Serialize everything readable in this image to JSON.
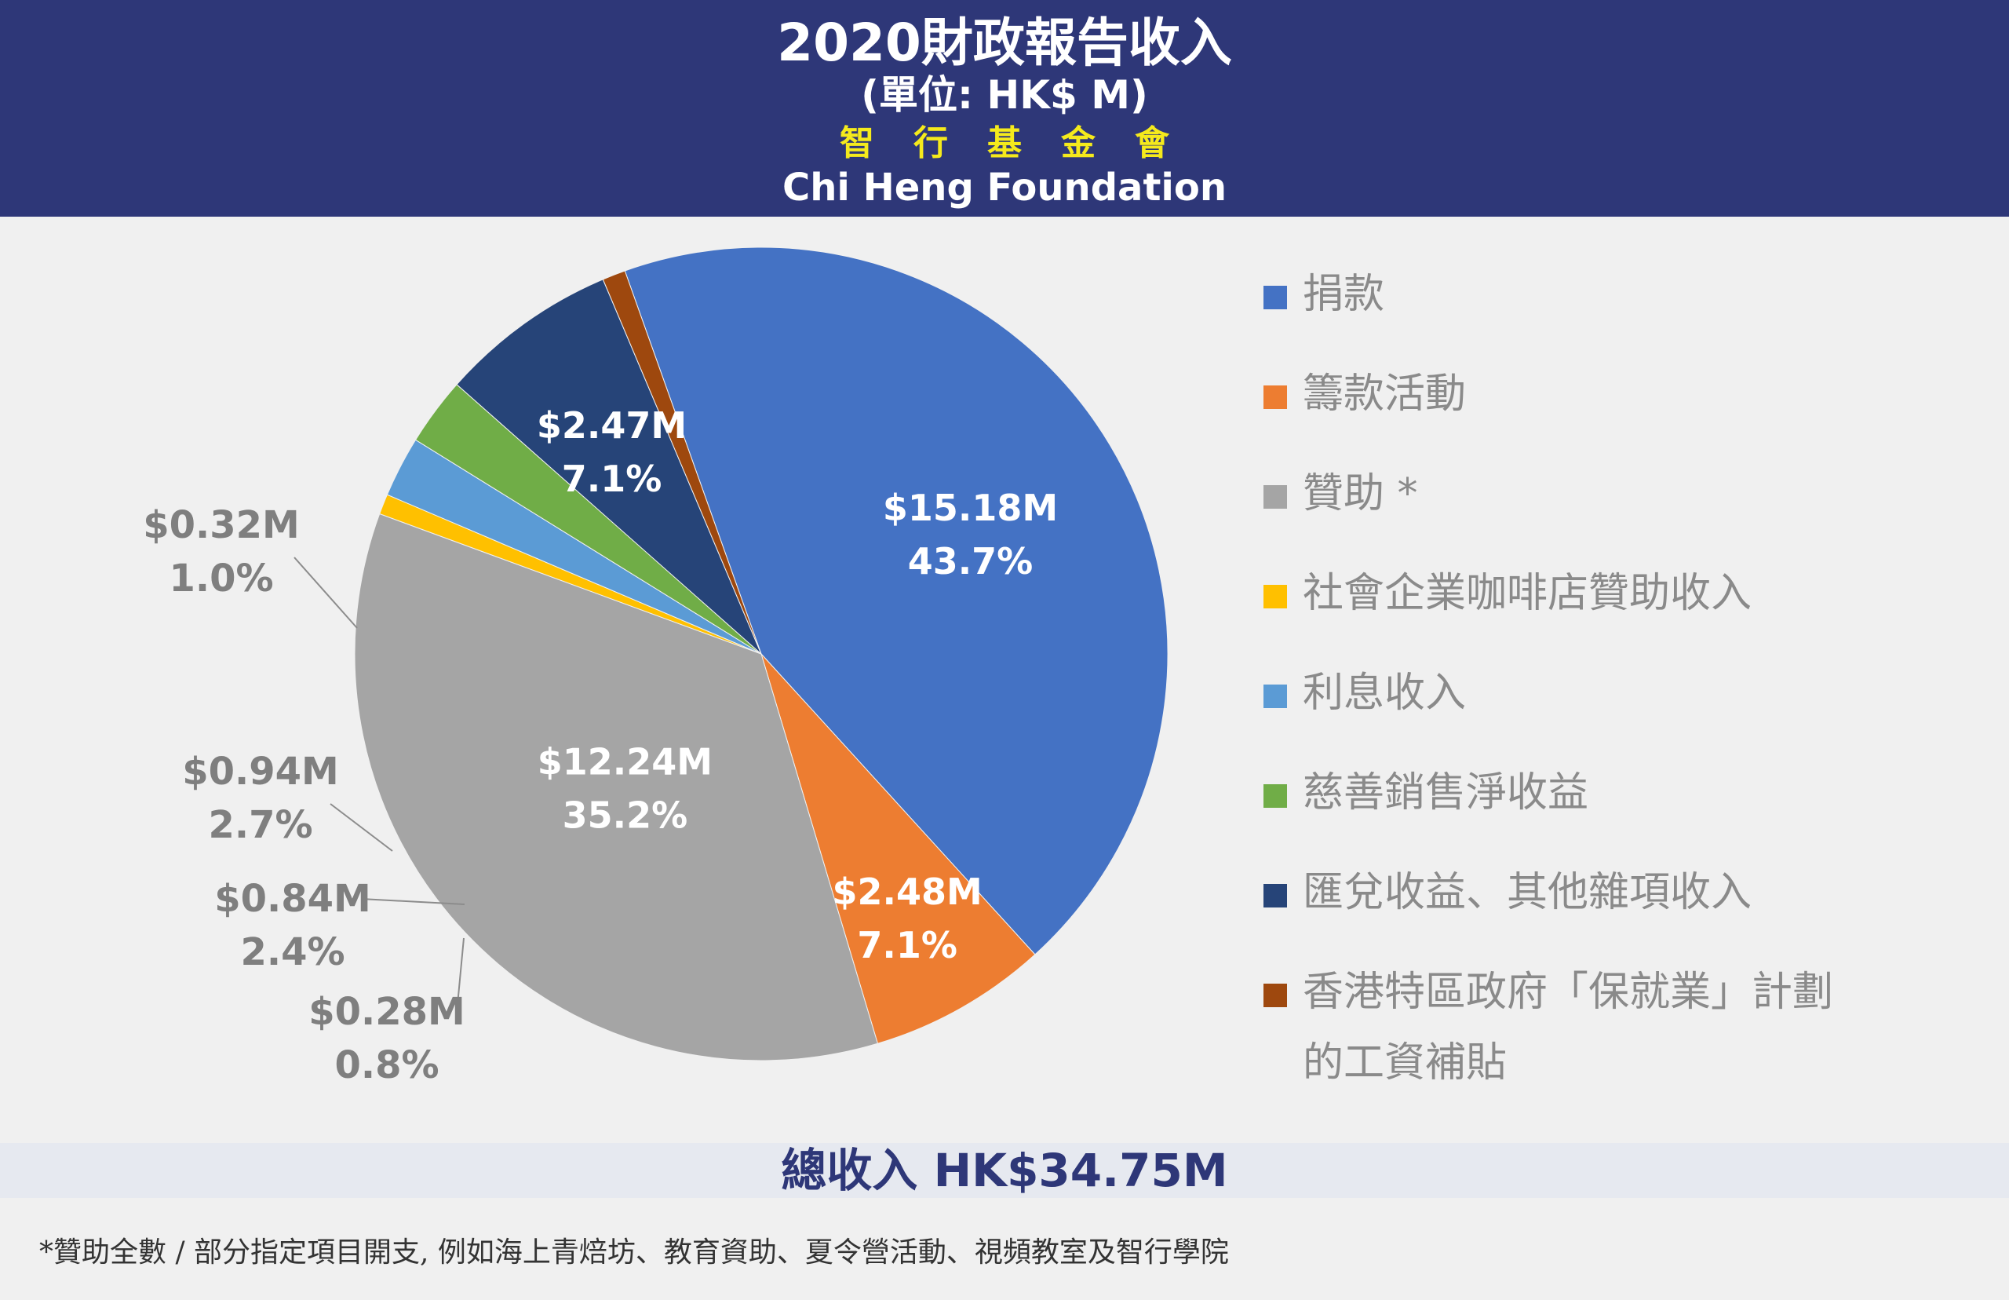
{
  "header": {
    "title": "2020財政報告收入",
    "unit": "(單位: HK$ M)",
    "org_zh": "智行基金會",
    "org_en": "Chi Heng Foundation",
    "bg_color": "#2e3778",
    "org_zh_color": "#f5ea1c"
  },
  "chart_data": {
    "type": "pie",
    "title": "2020財政報告收入",
    "unit": "(單位: HK$ M)",
    "total": 34.75,
    "slices": [
      {
        "name": "捐款",
        "value": 15.18,
        "label": "$15.18M",
        "percent": "43.7%",
        "color": "#4472c4"
      },
      {
        "name": "籌款活動",
        "value": 2.48,
        "label": "$2.48M",
        "percent": "7.1%",
        "color": "#ed7d31"
      },
      {
        "name": "贊助 *",
        "value": 12.24,
        "label": "$12.24M",
        "percent": "35.2%",
        "color": "#a5a5a5"
      },
      {
        "name": "社會企業咖啡店贊助收入",
        "value": 0.28,
        "label": "$0.28M",
        "percent": "0.8%",
        "color": "#ffc000"
      },
      {
        "name": "利息收入",
        "value": 0.84,
        "label": "$0.84M",
        "percent": "2.4%",
        "color": "#5b9bd5"
      },
      {
        "name": "慈善銷售淨收益",
        "value": 0.94,
        "label": "$0.94M",
        "percent": "2.7%",
        "color": "#70ad47"
      },
      {
        "name": "匯兌收益、其他雜項收入",
        "value": 2.47,
        "label": "$2.47M",
        "percent": "7.1%",
        "color": "#264478"
      },
      {
        "name": "香港特區政府「保就業」計劃的工資補貼",
        "value": 0.32,
        "label": "$0.32M",
        "percent": "1.0%",
        "color": "#9e480e"
      }
    ],
    "legend_position": "right"
  },
  "legend": {
    "items": [
      {
        "label": "捐款",
        "color": "#4472c4"
      },
      {
        "label": "籌款活動",
        "color": "#ed7d31"
      },
      {
        "label": "贊助 *",
        "color": "#a5a5a5"
      },
      {
        "label": "社會企業咖啡店贊助收入",
        "color": "#ffc000"
      },
      {
        "label": "利息收入",
        "color": "#5b9bd5"
      },
      {
        "label": "慈善銷售淨收益",
        "color": "#70ad47"
      },
      {
        "label": "匯兌收益、其他雜項收入",
        "color": "#264478"
      },
      {
        "label": "香港特區政府「保就業」計劃",
        "label_line2": "的工資補貼",
        "color": "#9e480e"
      }
    ]
  },
  "total": {
    "text": "總收入  HK$34.75M"
  },
  "footnote": {
    "text": "*贊助全數 / 部分指定項目開支, 例如海上青焙坊、教育資助、夏令營活動、視頻教室及智行學院"
  }
}
